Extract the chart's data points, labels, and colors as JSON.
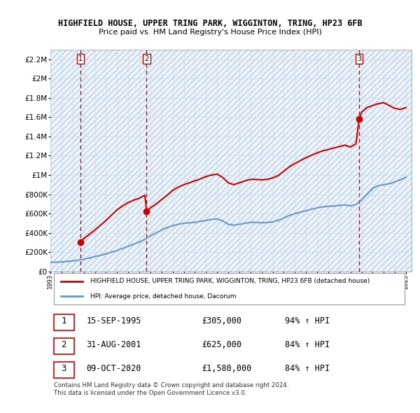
{
  "title": "HIGHFIELD HOUSE, UPPER TRING PARK, WIGGINTON, TRING, HP23 6FB",
  "subtitle": "Price paid vs. HM Land Registry's House Price Index (HPI)",
  "legend_house": "HIGHFIELD HOUSE, UPPER TRING PARK, WIGGINTON, TRING, HP23 6FB (detached house)",
  "legend_hpi": "HPI: Average price, detached house, Dacorum",
  "footer": "Contains HM Land Registry data © Crown copyright and database right 2024.\nThis data is licensed under the Open Government Licence v3.0.",
  "sales": [
    {
      "num": 1,
      "date": "15-SEP-1995",
      "price": 305000,
      "hpi_pct": "94%",
      "year_x": 1995.71
    },
    {
      "num": 2,
      "date": "31-AUG-2001",
      "price": 625000,
      "hpi_pct": "84%",
      "year_x": 2001.66
    },
    {
      "num": 3,
      "date": "09-OCT-2020",
      "price": 1580000,
      "hpi_pct": "84%",
      "year_x": 2020.77
    }
  ],
  "ylim": [
    0,
    2300000
  ],
  "xlim_start": 1993.0,
  "xlim_end": 2025.5,
  "yticks": [
    0,
    200000,
    400000,
    600000,
    800000,
    1000000,
    1200000,
    1400000,
    1600000,
    1800000,
    2000000,
    2200000
  ],
  "ytick_labels": [
    "£0",
    "£200K",
    "£400K",
    "£600K",
    "£800K",
    "£1M",
    "£1.2M",
    "£1.4M",
    "£1.6M",
    "£1.8M",
    "£2M",
    "£2.2M"
  ],
  "xticks": [
    1993,
    1994,
    1995,
    1996,
    1997,
    1998,
    1999,
    2000,
    2001,
    2002,
    2003,
    2004,
    2005,
    2006,
    2007,
    2008,
    2009,
    2010,
    2011,
    2012,
    2013,
    2014,
    2015,
    2016,
    2017,
    2018,
    2019,
    2020,
    2021,
    2022,
    2023,
    2024,
    2025
  ],
  "hpi_color": "#6699cc",
  "house_color": "#cc0000",
  "grid_color": "#ccddee",
  "bg_color": "#ddeeff",
  "plot_bg": "#eef4fb",
  "dashed_line_color": "#cc0000",
  "hpi_x": [
    1993.0,
    1993.5,
    1994.0,
    1994.5,
    1995.0,
    1995.5,
    1996.0,
    1996.5,
    1997.0,
    1997.5,
    1998.0,
    1998.5,
    1999.0,
    1999.5,
    2000.0,
    2000.5,
    2001.0,
    2001.5,
    2002.0,
    2002.5,
    2003.0,
    2003.5,
    2004.0,
    2004.5,
    2005.0,
    2005.5,
    2006.0,
    2006.5,
    2007.0,
    2007.5,
    2008.0,
    2008.5,
    2009.0,
    2009.5,
    2010.0,
    2010.5,
    2011.0,
    2011.5,
    2012.0,
    2012.5,
    2013.0,
    2013.5,
    2014.0,
    2014.5,
    2015.0,
    2015.5,
    2016.0,
    2016.5,
    2017.0,
    2017.5,
    2018.0,
    2018.5,
    2019.0,
    2019.5,
    2020.0,
    2020.5,
    2021.0,
    2021.5,
    2022.0,
    2022.5,
    2023.0,
    2023.5,
    2024.0,
    2024.5,
    2025.0
  ],
  "hpi_y": [
    95000,
    97000,
    100000,
    105000,
    110000,
    118000,
    128000,
    140000,
    155000,
    168000,
    182000,
    200000,
    218000,
    240000,
    262000,
    285000,
    305000,
    335000,
    370000,
    400000,
    430000,
    455000,
    475000,
    490000,
    500000,
    505000,
    510000,
    520000,
    530000,
    540000,
    545000,
    525000,
    490000,
    480000,
    490000,
    500000,
    510000,
    510000,
    505000,
    508000,
    515000,
    530000,
    555000,
    580000,
    600000,
    615000,
    630000,
    645000,
    660000,
    670000,
    675000,
    680000,
    685000,
    690000,
    680000,
    695000,
    740000,
    800000,
    860000,
    890000,
    900000,
    910000,
    930000,
    950000,
    980000
  ],
  "house_x": [
    1993.0,
    1993.5,
    1994.0,
    1994.5,
    1995.0,
    1995.5,
    1995.71,
    1996.0,
    1996.5,
    1997.0,
    1997.5,
    1998.0,
    1998.5,
    1999.0,
    1999.5,
    2000.0,
    2000.5,
    2001.0,
    2001.5,
    2001.66,
    2002.0,
    2002.5,
    2003.0,
    2003.5,
    2004.0,
    2004.5,
    2005.0,
    2005.5,
    2006.0,
    2006.5,
    2007.0,
    2007.5,
    2008.0,
    2008.5,
    2009.0,
    2009.5,
    2010.0,
    2010.5,
    2011.0,
    2011.5,
    2012.0,
    2012.5,
    2013.0,
    2013.5,
    2014.0,
    2014.5,
    2015.0,
    2015.5,
    2016.0,
    2016.5,
    2017.0,
    2017.5,
    2018.0,
    2018.5,
    2019.0,
    2019.5,
    2020.0,
    2020.5,
    2020.77,
    2021.0,
    2021.5,
    2022.0,
    2022.5,
    2023.0,
    2023.5,
    2024.0,
    2024.5,
    2025.0
  ],
  "house_y": [
    null,
    null,
    null,
    null,
    null,
    null,
    305000,
    340000,
    385000,
    430000,
    480000,
    530000,
    585000,
    640000,
    680000,
    715000,
    740000,
    760000,
    790000,
    625000,
    660000,
    700000,
    745000,
    790000,
    840000,
    875000,
    900000,
    920000,
    940000,
    960000,
    985000,
    1000000,
    1010000,
    975000,
    920000,
    900000,
    920000,
    940000,
    955000,
    955000,
    950000,
    955000,
    970000,
    995000,
    1040000,
    1085000,
    1120000,
    1150000,
    1180000,
    1205000,
    1230000,
    1250000,
    1265000,
    1280000,
    1295000,
    1310000,
    1290000,
    1325000,
    1580000,
    1650000,
    1700000,
    1720000,
    1740000,
    1750000,
    1720000,
    1690000,
    1680000,
    1700000
  ]
}
